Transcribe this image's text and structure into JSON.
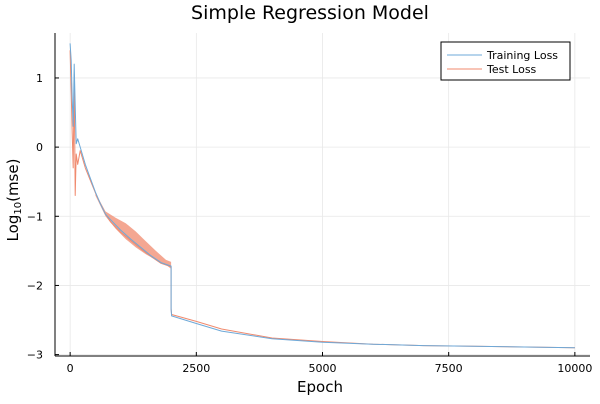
{
  "chart_data": {
    "type": "line",
    "title": "Simple Regression Model",
    "xlabel": "Epoch",
    "ylabel_main": "Log",
    "ylabel_sub": "10",
    "ylabel_tail": "(mse)",
    "xlim": [
      -300,
      10300
    ],
    "ylim": [
      -3.02,
      1.65
    ],
    "xticks": [
      0,
      2500,
      5000,
      7500,
      10000
    ],
    "xtick_labels": [
      "0",
      "2500",
      "5000",
      "7500",
      "10000"
    ],
    "yticks": [
      1,
      0,
      -1,
      -2,
      -3
    ],
    "ytick_labels": [
      "1",
      "0",
      "−1",
      "−2",
      "−3"
    ],
    "grid": true,
    "legend_position": "top-right",
    "series": [
      {
        "name": "Training Loss",
        "color": "#6ea9d8",
        "x": [
          0,
          20,
          40,
          60,
          80,
          100,
          120,
          150,
          200,
          300,
          400,
          500,
          600,
          700,
          800,
          1000,
          1200,
          1400,
          1600,
          1800,
          2000,
          2000,
          2010,
          2500,
          3000,
          4000,
          5000,
          6000,
          7000,
          8000,
          9000,
          10000
        ],
        "y": [
          1.5,
          1.25,
          0.7,
          0.3,
          1.2,
          0.6,
          0.05,
          0.12,
          0.0,
          -0.25,
          -0.45,
          -0.65,
          -0.82,
          -0.97,
          -1.05,
          -1.2,
          -1.33,
          -1.45,
          -1.57,
          -1.67,
          -1.72,
          -2.35,
          -2.44,
          -2.55,
          -2.66,
          -2.77,
          -2.82,
          -2.85,
          -2.87,
          -2.88,
          -2.89,
          -2.9
        ]
      },
      {
        "name": "Test Loss",
        "color": "#f08a6e",
        "x": [
          0,
          20,
          40,
          60,
          80,
          100,
          120,
          150,
          200,
          300,
          400,
          500,
          600,
          700,
          800,
          1000,
          1200,
          1400,
          1600,
          1800,
          2000,
          2000,
          2010,
          2500,
          3000,
          4000,
          5000,
          6000,
          7000,
          8000,
          9000,
          10000
        ],
        "y": [
          1.4,
          0.8,
          0.2,
          -0.3,
          1.05,
          -0.7,
          -0.1,
          -0.25,
          -0.05,
          -0.3,
          -0.48,
          -0.66,
          -0.82,
          -0.97,
          -1.08,
          -1.23,
          -1.35,
          -1.47,
          -1.58,
          -1.68,
          -1.73,
          -2.33,
          -2.42,
          -2.52,
          -2.63,
          -2.76,
          -2.81,
          -2.85,
          -2.87,
          -2.88,
          -2.89,
          -2.9
        ]
      }
    ],
    "test_band": {
      "x": [
        500,
        700,
        900,
        1100,
        1300,
        1500,
        1700,
        1900,
        2000
      ],
      "upper": [
        -0.66,
        -0.93,
        -1.02,
        -1.1,
        -1.22,
        -1.36,
        -1.5,
        -1.63,
        -1.66
      ],
      "lower": [
        -0.7,
        -1.0,
        -1.18,
        -1.33,
        -1.45,
        -1.55,
        -1.63,
        -1.7,
        -1.76
      ]
    }
  }
}
